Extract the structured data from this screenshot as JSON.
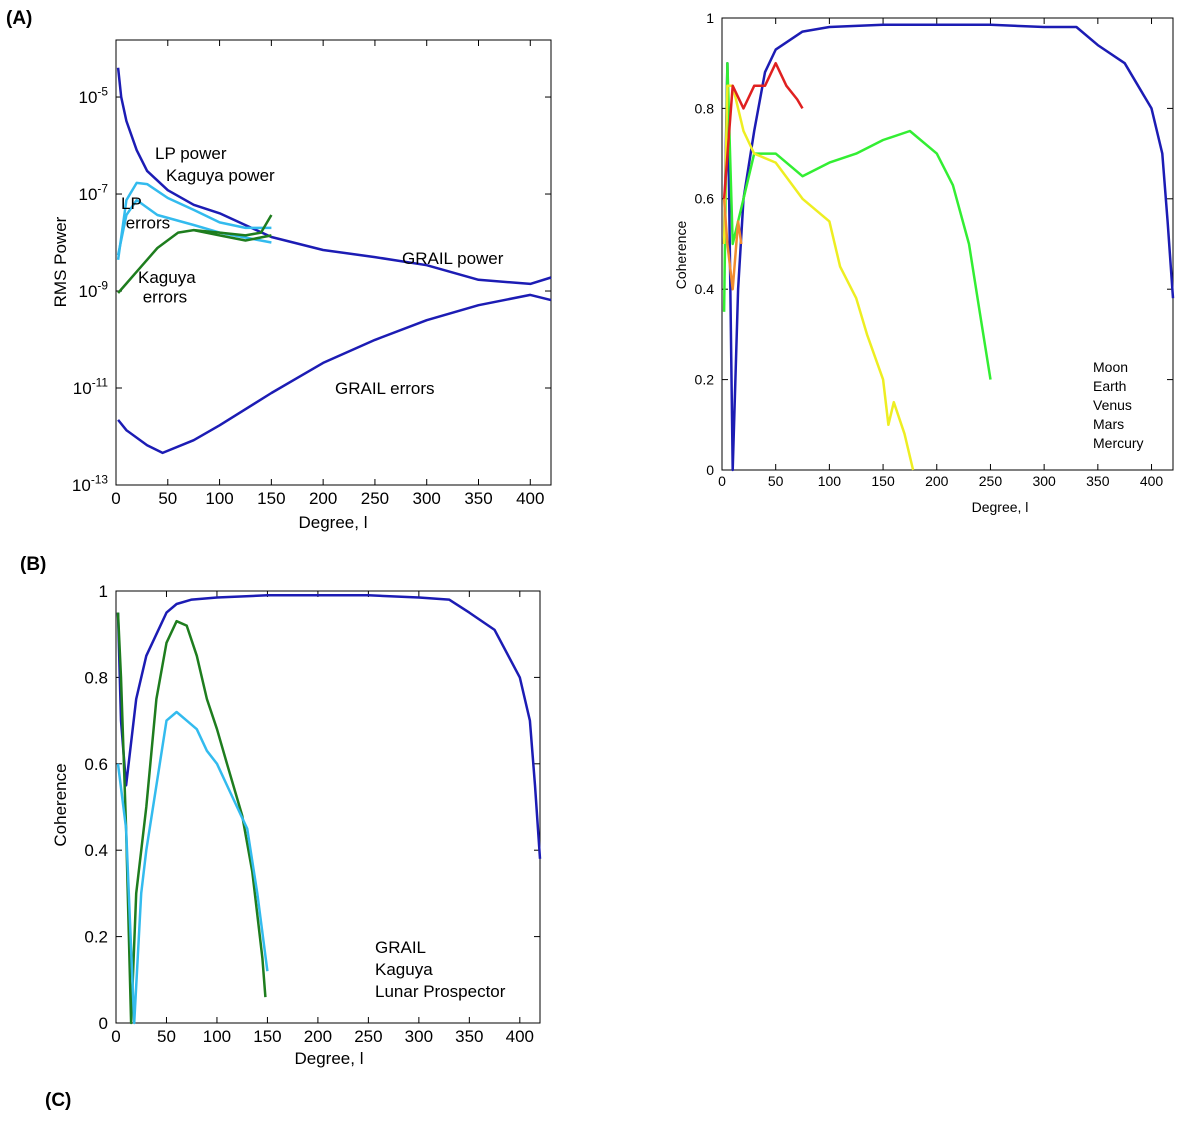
{
  "panel_labels": [
    "(A)",
    "(B)",
    "(C)"
  ],
  "chart_data": [
    {
      "type": "line",
      "yscale": "log",
      "legend": "inline",
      "xlabel": "Degree, l",
      "ylabel": "RMS Power",
      "xlim": [
        0,
        420
      ],
      "xticks": [
        0,
        50,
        100,
        150,
        200,
        250,
        300,
        350,
        400
      ],
      "ylim": [
        1e-13,
        0.00015
      ],
      "yticks": [
        {
          "value": 1e-13,
          "label": "10-13"
        },
        {
          "value": 1e-11,
          "label": "10-11"
        },
        {
          "value": 1e-09,
          "label": "10-9"
        },
        {
          "value": 1e-07,
          "label": "10-7"
        },
        {
          "value": 1e-05,
          "label": "10-5"
        }
      ],
      "series": [
        {
          "name": "GRAIL power",
          "color": "#1c1cb4",
          "x": [
            2,
            5,
            10,
            20,
            30,
            50,
            75,
            100,
            150,
            200,
            250,
            300,
            350,
            400,
            420
          ],
          "values": [
            4e-05,
            1e-05,
            3.2e-06,
            8e-07,
            3e-07,
            1.2e-07,
            6e-08,
            4e-08,
            1.3e-08,
            7e-09,
            5e-09,
            3.4e-09,
            1.7e-09,
            1.4e-09,
            1.9e-09
          ]
        },
        {
          "name": "GRAIL errors",
          "color": "#1c1cb4",
          "x": [
            2,
            10,
            30,
            45,
            75,
            100,
            150,
            200,
            250,
            300,
            350,
            400,
            420
          ],
          "values": [
            2.2e-12,
            1.35e-12,
            6.6e-13,
            4.6e-13,
            8.4e-13,
            1.7e-12,
            7.9e-12,
            3.3e-11,
            9.8e-11,
            2.5e-10,
            5.1e-10,
            8.3e-10,
            6.5e-10
          ]
        },
        {
          "name": "LP power",
          "color": "#33bbee",
          "x": [
            2,
            10,
            20,
            30,
            50,
            75,
            100,
            125,
            150
          ],
          "values": [
            4.4e-09,
            7.5e-08,
            1.7e-07,
            1.6e-07,
            8.3e-08,
            4.7e-08,
            2.6e-08,
            2e-08,
            2e-08
          ]
        },
        {
          "name": "LP errors",
          "color": "#33bbee",
          "x": [
            2,
            10,
            20,
            40,
            75,
            100,
            150
          ],
          "values": [
            5.5e-09,
            3.7e-08,
            7.5e-08,
            3.7e-08,
            2.3e-08,
            1.6e-08,
            1e-08
          ]
        },
        {
          "name": "Kaguya power",
          "color": "#1e7d1e",
          "x": [
            75,
            100,
            125,
            140,
            150
          ],
          "values": [
            1.8e-08,
            1.6e-08,
            1.4e-08,
            1.6e-08,
            3.7e-08
          ]
        },
        {
          "name": "Kaguya errors",
          "color": "#1e7d1e",
          "x": [
            2,
            20,
            40,
            60,
            75,
            100,
            125,
            150
          ],
          "values": [
            9.1e-10,
            2.5e-09,
            7.7e-09,
            1.6e-08,
            1.8e-08,
            1.4e-08,
            1.1e-08,
            1.4e-08
          ]
        }
      ]
    },
    {
      "type": "line",
      "legend": "lower right",
      "xlabel": "Degree, l",
      "ylabel": "Coherence",
      "xlim": [
        0,
        420
      ],
      "xticks": [
        0,
        50,
        100,
        150,
        200,
        250,
        300,
        350,
        400
      ],
      "ylim": [
        0,
        1
      ],
      "yticks": [
        0,
        0.2,
        0.4,
        0.6,
        0.8,
        1
      ],
      "series": [
        {
          "name": "Moon",
          "color": "#1c1cb4",
          "x": [
            2,
            5,
            10,
            15,
            20,
            30,
            40,
            50,
            75,
            100,
            150,
            200,
            250,
            300,
            330,
            350,
            375,
            400,
            410,
            415,
            420
          ],
          "values": [
            0.5,
            0.9,
            0,
            0.4,
            0.6,
            0.75,
            0.88,
            0.93,
            0.97,
            0.98,
            0.985,
            0.985,
            0.985,
            0.98,
            0.98,
            0.94,
            0.9,
            0.8,
            0.7,
            0.55,
            0.38
          ]
        },
        {
          "name": "Earth",
          "color": "#33ee33",
          "x": [
            2,
            5,
            10,
            20,
            30,
            50,
            75,
            100,
            125,
            150,
            175,
            200,
            215,
            230,
            240,
            250
          ],
          "values": [
            0.35,
            0.9,
            0.5,
            0.6,
            0.7,
            0.7,
            0.65,
            0.68,
            0.7,
            0.73,
            0.75,
            0.7,
            0.63,
            0.5,
            0.35,
            0.2
          ]
        },
        {
          "name": "Venus",
          "color": "#eeee22",
          "x": [
            2,
            5,
            10,
            20,
            30,
            50,
            75,
            100,
            110,
            125,
            135,
            150,
            155,
            160,
            170,
            178
          ],
          "values": [
            0.5,
            0.85,
            0.85,
            0.75,
            0.7,
            0.68,
            0.6,
            0.55,
            0.45,
            0.38,
            0.3,
            0.2,
            0.1,
            0.15,
            0.08,
            0
          ]
        },
        {
          "name": "Mars",
          "color": "#e02020",
          "x": [
            2,
            10,
            20,
            30,
            40,
            50,
            60,
            70,
            75
          ],
          "values": [
            0.6,
            0.85,
            0.8,
            0.85,
            0.85,
            0.9,
            0.85,
            0.82,
            0.8
          ]
        },
        {
          "name": "Mercury",
          "color": "#f08c30",
          "x": [
            2,
            5,
            10,
            15,
            18
          ],
          "values": [
            0.6,
            0.5,
            0.4,
            0.55,
            0.5
          ]
        }
      ]
    },
    {
      "type": "line",
      "legend": "lower right",
      "xlabel": "Degree, l",
      "ylabel": "Coherence",
      "xlim": [
        0,
        420
      ],
      "xticks": [
        0,
        50,
        100,
        150,
        200,
        250,
        300,
        350,
        400
      ],
      "ylim": [
        0,
        1
      ],
      "yticks": [
        0,
        0.2,
        0.4,
        0.6,
        0.8,
        1
      ],
      "series": [
        {
          "name": "GRAIL",
          "color": "#1c1cb4",
          "x": [
            2,
            5,
            10,
            20,
            30,
            40,
            50,
            60,
            75,
            100,
            150,
            200,
            250,
            300,
            330,
            350,
            375,
            400,
            410,
            415,
            420
          ],
          "values": [
            0.95,
            0.7,
            0.55,
            0.75,
            0.85,
            0.9,
            0.95,
            0.97,
            0.98,
            0.985,
            0.99,
            0.99,
            0.99,
            0.985,
            0.98,
            0.95,
            0.91,
            0.8,
            0.7,
            0.55,
            0.38
          ]
        },
        {
          "name": "Kaguya",
          "color": "#1e7d1e",
          "x": [
            2,
            5,
            10,
            15,
            20,
            30,
            40,
            50,
            60,
            70,
            80,
            90,
            100,
            110,
            125,
            135,
            145,
            148
          ],
          "values": [
            0.95,
            0.8,
            0.45,
            0,
            0.3,
            0.5,
            0.75,
            0.88,
            0.93,
            0.92,
            0.85,
            0.75,
            0.68,
            0.6,
            0.48,
            0.35,
            0.15,
            0.06
          ]
        },
        {
          "name": "Lunar Prospector",
          "color": "#33bbee",
          "x": [
            2,
            10,
            18,
            25,
            30,
            40,
            50,
            60,
            70,
            80,
            90,
            100,
            110,
            120,
            130,
            140,
            150
          ],
          "values": [
            0.6,
            0.45,
            0,
            0.3,
            0.4,
            0.55,
            0.7,
            0.72,
            0.7,
            0.68,
            0.63,
            0.6,
            0.55,
            0.5,
            0.45,
            0.3,
            0.12
          ]
        }
      ]
    }
  ]
}
